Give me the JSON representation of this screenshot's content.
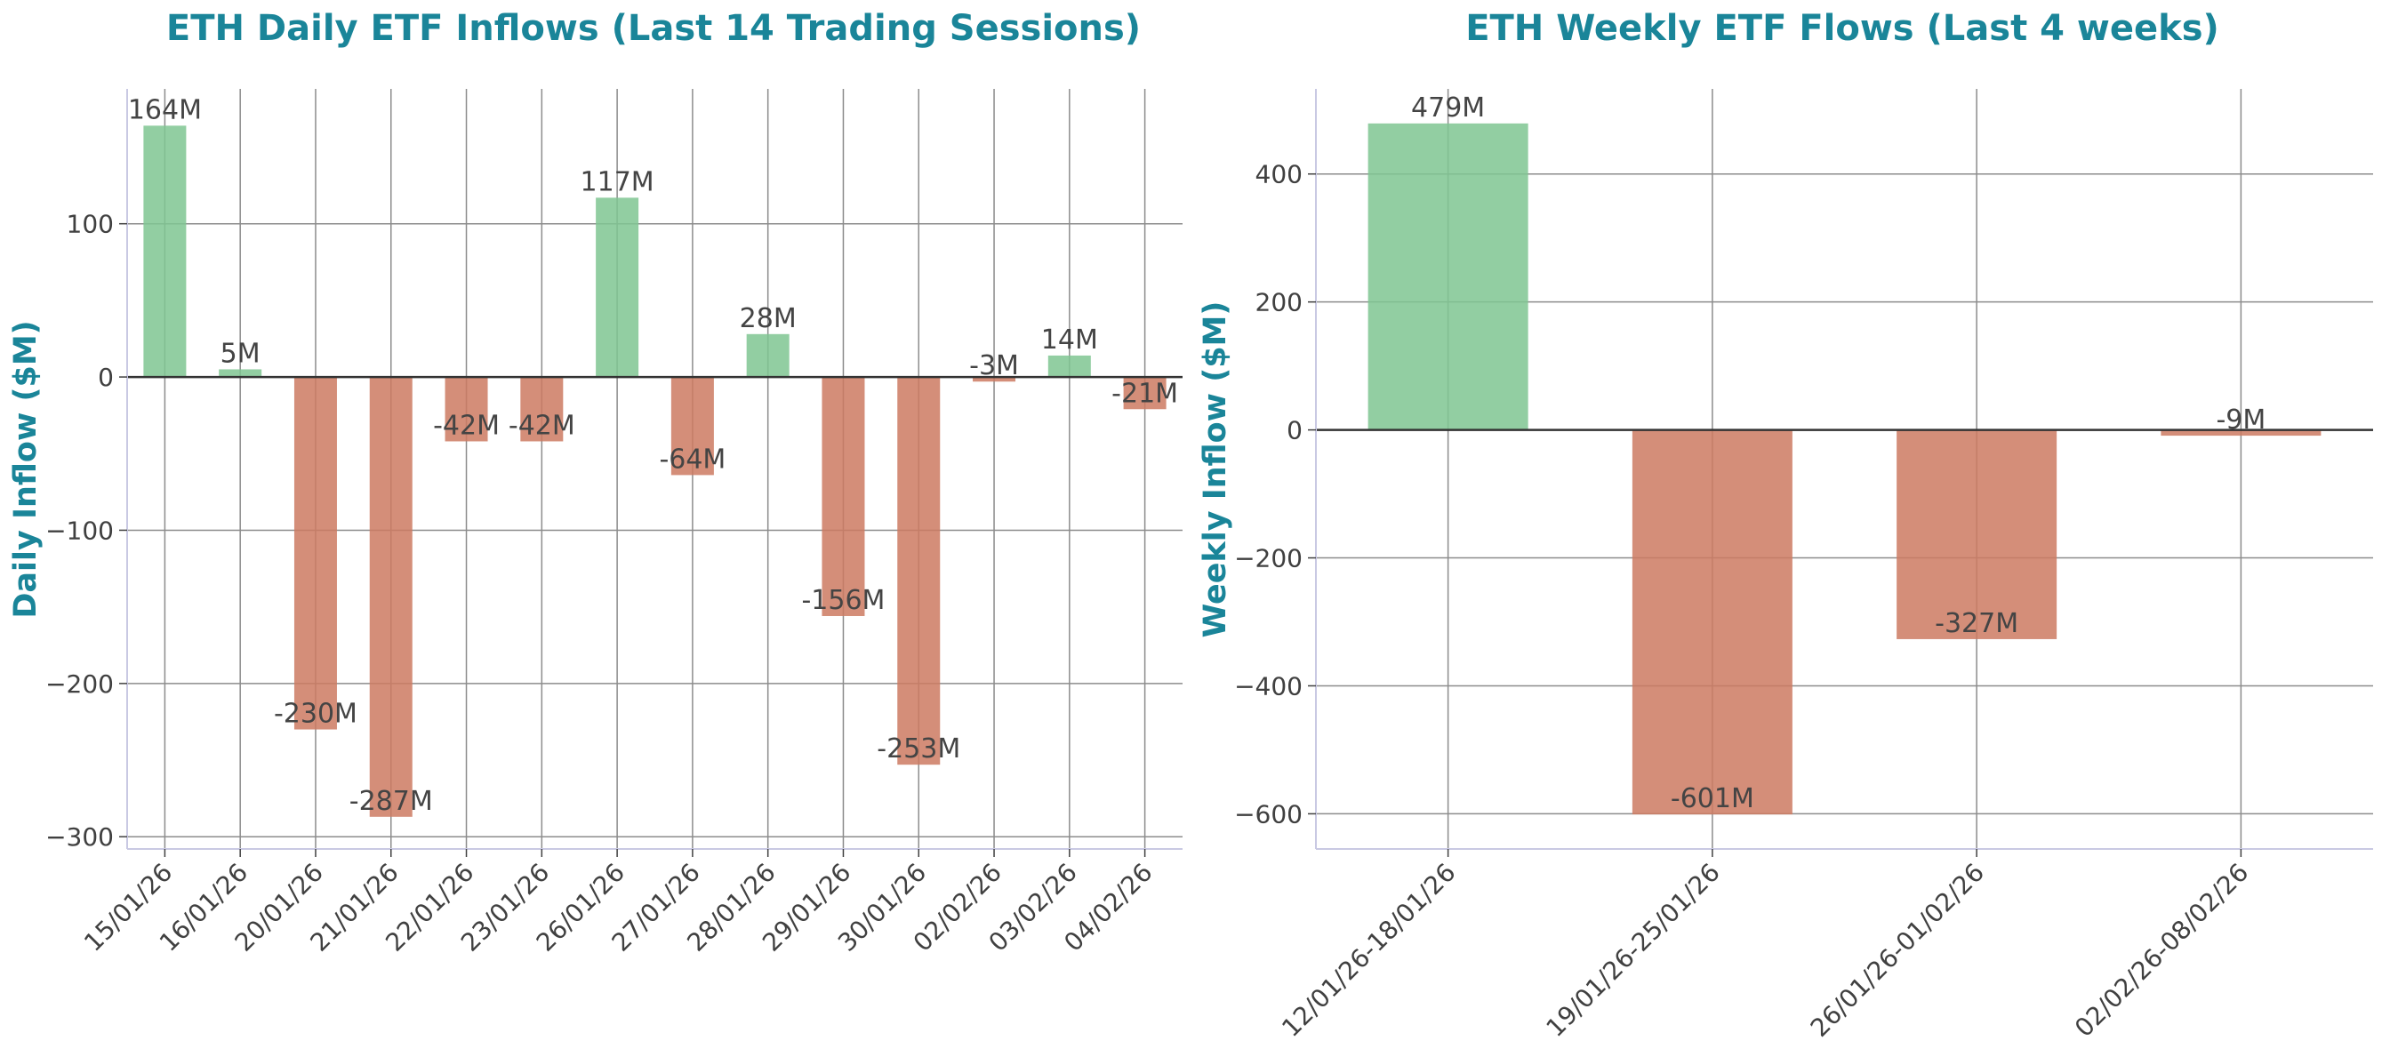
{
  "colors": {
    "title": "#1a8599",
    "positive": "#7fc692",
    "negative": "#cc7a62",
    "grid": "#8c8c8c",
    "zero_line": "#333333",
    "tick_text": "#404040",
    "label_text": "#444444",
    "spine": "#c9c9e3"
  },
  "chart_data": [
    {
      "type": "bar",
      "title": "ETH Daily ETF Inflows (Last 14 Trading Sessions)",
      "xlabel": "",
      "ylabel": "Daily Inflow ($M)",
      "categories": [
        "15/01/26",
        "16/01/26",
        "20/01/26",
        "21/01/26",
        "22/01/26",
        "23/01/26",
        "26/01/26",
        "27/01/26",
        "28/01/26",
        "29/01/26",
        "30/01/26",
        "02/02/26",
        "03/02/26",
        "04/02/26"
      ],
      "values": [
        164,
        5,
        -230,
        -287,
        -42,
        -42,
        117,
        -64,
        28,
        -156,
        -253,
        -3,
        14,
        -21
      ],
      "data_labels": [
        "164M",
        "5M",
        "-230M",
        "-287M",
        "-42M",
        "-42M",
        "117M",
        "-64M",
        "28M",
        "-156M",
        "-253M",
        "-3M",
        "14M",
        "-21M"
      ],
      "ylim": [
        -308,
        188
      ],
      "yticks": [
        -300,
        -200,
        -100,
        0,
        100
      ],
      "ytick_labels": [
        "−300",
        "−200",
        "−100",
        "0",
        "100"
      ],
      "grid": true
    },
    {
      "type": "bar",
      "title": "ETH Weekly ETF Flows (Last 4 weeks)",
      "xlabel": "",
      "ylabel": "Weekly Inflow ($M)",
      "categories": [
        "12/01/26-18/01/26",
        "19/01/26-25/01/26",
        "26/01/26-01/02/26",
        "02/02/26-08/02/26"
      ],
      "values": [
        479,
        -601,
        -327,
        -9
      ],
      "data_labels": [
        "479M",
        "-601M",
        "-327M",
        "-9M"
      ],
      "ylim": [
        -655,
        533
      ],
      "yticks": [
        -600,
        -400,
        -200,
        0,
        200,
        400
      ],
      "ytick_labels": [
        "−600",
        "−400",
        "−200",
        "0",
        "200",
        "400"
      ],
      "grid": true
    }
  ]
}
